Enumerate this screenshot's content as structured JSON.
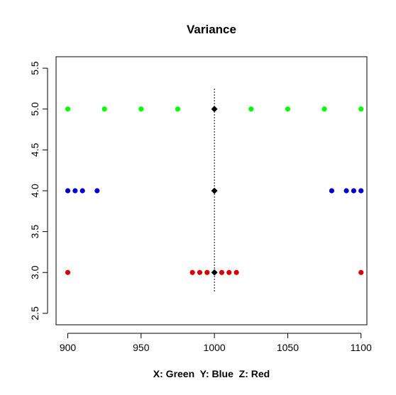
{
  "chart_data": {
    "type": "scatter",
    "title": "Variance",
    "xlabel": "X: Green  Y: Blue  Z: Red",
    "ylabel": "",
    "xlim": [
      892,
      1104
    ],
    "ylim": [
      2.36,
      5.64
    ],
    "x_ticks": [
      {
        "value": 900,
        "label": "900"
      },
      {
        "value": 950,
        "label": "950"
      },
      {
        "value": 1000,
        "label": "1000"
      },
      {
        "value": 1050,
        "label": "1050"
      },
      {
        "value": 1100,
        "label": "1100"
      }
    ],
    "y_ticks": [
      {
        "value": 2.5,
        "label": "2.5"
      },
      {
        "value": 3.0,
        "label": "3.0"
      },
      {
        "value": 3.5,
        "label": "3.5"
      },
      {
        "value": 4.0,
        "label": "4.0"
      },
      {
        "value": 4.5,
        "label": "4.5"
      },
      {
        "value": 5.0,
        "label": "5.0"
      },
      {
        "value": 5.5,
        "label": "5.5"
      }
    ],
    "series": [
      {
        "color": "#00ff00",
        "marker": "circle",
        "y": 5,
        "x": [
          900,
          925,
          950,
          975,
          1025,
          1050,
          1075,
          1100
        ]
      },
      {
        "color": "#0000cc",
        "marker": "circle",
        "y": 4,
        "x": [
          900,
          905,
          910,
          920,
          1080,
          1090,
          1095,
          1100
        ]
      },
      {
        "color": "#dd0000",
        "marker": "circle",
        "y": 3,
        "x": [
          900,
          985,
          990,
          995,
          1005,
          1010,
          1015,
          1100
        ]
      },
      {
        "color": "#000000",
        "marker": "diamond",
        "points": [
          [
            1000,
            5
          ],
          [
            1000,
            4
          ],
          [
            1000,
            3
          ]
        ]
      }
    ],
    "reference_line": {
      "x": 1000,
      "y_from": 2.75,
      "y_to": 5.25,
      "style": "dotted",
      "color": "#000000"
    },
    "grid": false,
    "legend": "none"
  }
}
